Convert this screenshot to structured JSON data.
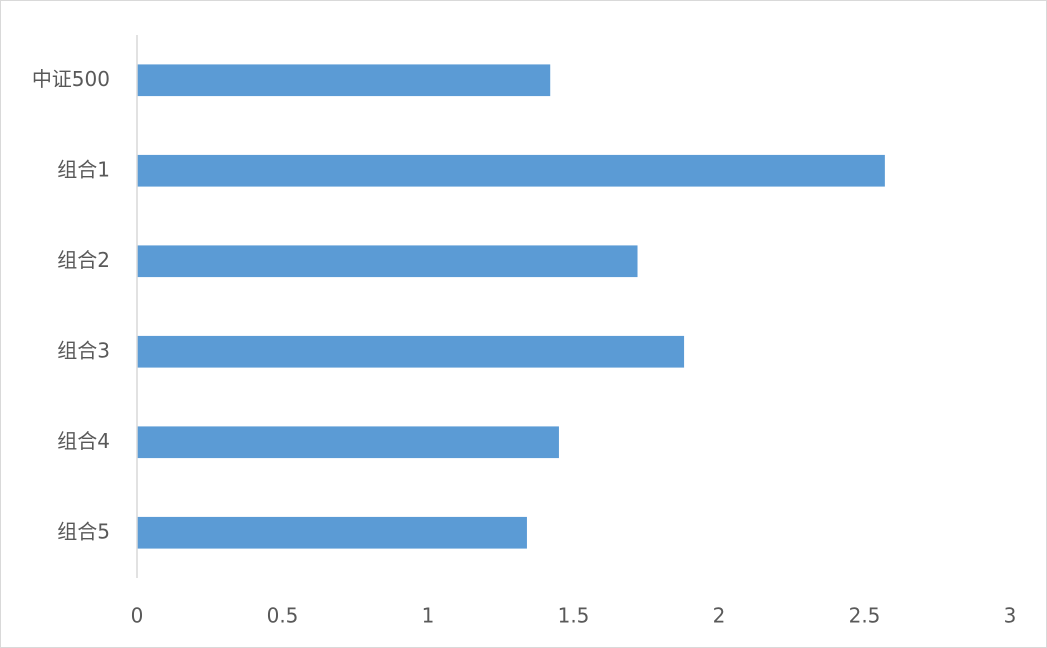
{
  "chart_data": {
    "type": "bar",
    "orientation": "horizontal",
    "categories": [
      "中证500",
      "组合1",
      "组合2",
      "组合3",
      "组合4",
      "组合5"
    ],
    "values": [
      1.42,
      2.57,
      1.72,
      1.88,
      1.45,
      1.34
    ],
    "color": "#5b9bd5",
    "xlim": [
      0,
      3
    ],
    "xticks": [
      0,
      0.5,
      1,
      1.5,
      2,
      2.5,
      3
    ],
    "grid": false
  }
}
